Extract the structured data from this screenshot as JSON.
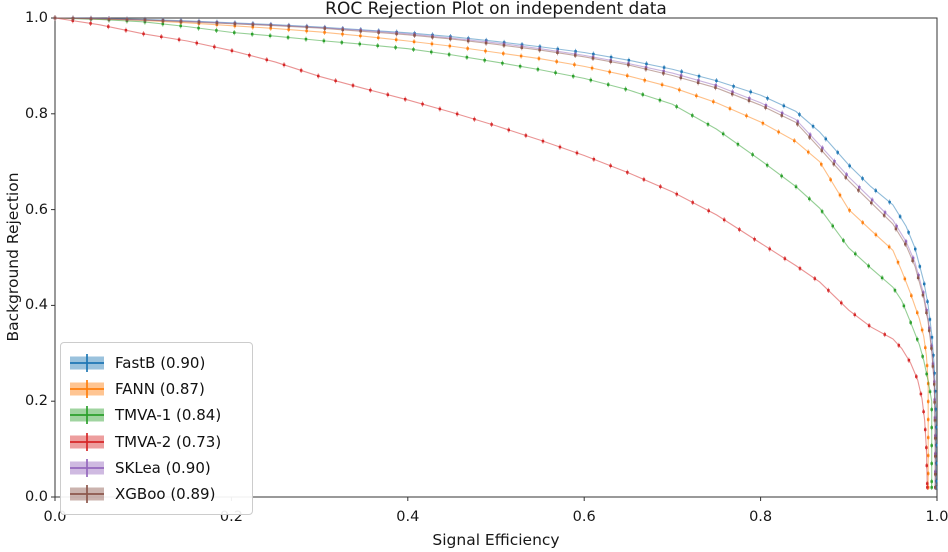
{
  "chart_data": {
    "type": "line",
    "title": "ROC Rejection Plot on independent data",
    "xlabel": "Signal Efficiency",
    "ylabel": "Background Rejection",
    "xlim": [
      0.0,
      1.0
    ],
    "ylim": [
      0.0,
      1.0
    ],
    "x_ticks": [
      "0.0",
      "0.2",
      "0.4",
      "0.6",
      "0.8",
      "1.0"
    ],
    "y_ticks": [
      "0.0",
      "0.2",
      "0.4",
      "0.6",
      "0.8",
      "1.0"
    ],
    "grid": false,
    "legend_position": "lower left",
    "frame_color": "#333333",
    "series": [
      {
        "name": "FastB",
        "auc": 0.9,
        "label": "FastB (0.90)",
        "color": "#1f77b4",
        "points": [
          [
            0,
            1
          ],
          [
            0.05,
            0.999
          ],
          [
            0.1,
            0.997
          ],
          [
            0.15,
            0.994
          ],
          [
            0.2,
            0.99
          ],
          [
            0.25,
            0.986
          ],
          [
            0.3,
            0.981
          ],
          [
            0.35,
            0.975
          ],
          [
            0.4,
            0.969
          ],
          [
            0.45,
            0.961
          ],
          [
            0.5,
            0.951
          ],
          [
            0.55,
            0.94
          ],
          [
            0.6,
            0.928
          ],
          [
            0.65,
            0.912
          ],
          [
            0.7,
            0.893
          ],
          [
            0.75,
            0.869
          ],
          [
            0.8,
            0.839
          ],
          [
            0.84,
            0.805
          ],
          [
            0.867,
            0.762
          ],
          [
            0.9,
            0.693
          ],
          [
            0.925,
            0.648
          ],
          [
            0.95,
            0.61
          ],
          [
            0.965,
            0.565
          ],
          [
            0.975,
            0.52
          ],
          [
            0.985,
            0.45
          ],
          [
            0.99,
            0.4
          ],
          [
            0.994,
            0.34
          ],
          [
            0.997,
            0.27
          ],
          [
            0.999,
            0.15
          ],
          [
            0.999,
            0.02
          ]
        ]
      },
      {
        "name": "FANN",
        "auc": 0.87,
        "label": "FANN (0.87)",
        "color": "#ff7f0e",
        "points": [
          [
            0,
            1
          ],
          [
            0.05,
            0.998
          ],
          [
            0.1,
            0.995
          ],
          [
            0.15,
            0.99
          ],
          [
            0.2,
            0.984
          ],
          [
            0.25,
            0.978
          ],
          [
            0.3,
            0.971
          ],
          [
            0.35,
            0.962
          ],
          [
            0.4,
            0.952
          ],
          [
            0.45,
            0.941
          ],
          [
            0.5,
            0.928
          ],
          [
            0.55,
            0.915
          ],
          [
            0.6,
            0.899
          ],
          [
            0.65,
            0.879
          ],
          [
            0.7,
            0.855
          ],
          [
            0.75,
            0.823
          ],
          [
            0.8,
            0.783
          ],
          [
            0.84,
            0.742
          ],
          [
            0.867,
            0.7
          ],
          [
            0.9,
            0.6
          ],
          [
            0.925,
            0.557
          ],
          [
            0.95,
            0.515
          ],
          [
            0.96,
            0.472
          ],
          [
            0.97,
            0.425
          ],
          [
            0.98,
            0.372
          ],
          [
            0.985,
            0.335
          ],
          [
            0.988,
            0.295
          ],
          [
            0.99,
            0.24
          ],
          [
            0.99,
            0.12
          ],
          [
            0.99,
            0.02
          ]
        ]
      },
      {
        "name": "TMVA-1",
        "auc": 0.84,
        "label": "TMVA-1 (0.84)",
        "color": "#2ca02c",
        "points": [
          [
            0,
            1
          ],
          [
            0.05,
            0.997
          ],
          [
            0.1,
            0.992
          ],
          [
            0.15,
            0.982
          ],
          [
            0.2,
            0.97
          ],
          [
            0.25,
            0.962
          ],
          [
            0.3,
            0.953
          ],
          [
            0.35,
            0.945
          ],
          [
            0.4,
            0.936
          ],
          [
            0.45,
            0.923
          ],
          [
            0.5,
            0.908
          ],
          [
            0.55,
            0.892
          ],
          [
            0.6,
            0.874
          ],
          [
            0.65,
            0.85
          ],
          [
            0.7,
            0.82
          ],
          [
            0.75,
            0.768
          ],
          [
            0.8,
            0.703
          ],
          [
            0.84,
            0.648
          ],
          [
            0.867,
            0.603
          ],
          [
            0.9,
            0.52
          ],
          [
            0.925,
            0.478
          ],
          [
            0.95,
            0.438
          ],
          [
            0.96,
            0.41
          ],
          [
            0.97,
            0.365
          ],
          [
            0.98,
            0.318
          ],
          [
            0.985,
            0.285
          ],
          [
            0.99,
            0.242
          ],
          [
            0.994,
            0.2
          ],
          [
            0.994,
            0.1
          ],
          [
            0.994,
            0.02
          ]
        ]
      },
      {
        "name": "TMVA-2",
        "auc": 0.73,
        "label": "TMVA-2 (0.73)",
        "color": "#d62728",
        "points": [
          [
            0,
            1
          ],
          [
            0.05,
            0.986
          ],
          [
            0.1,
            0.967
          ],
          [
            0.15,
            0.952
          ],
          [
            0.2,
            0.932
          ],
          [
            0.25,
            0.908
          ],
          [
            0.3,
            0.878
          ],
          [
            0.35,
            0.853
          ],
          [
            0.4,
            0.829
          ],
          [
            0.45,
            0.803
          ],
          [
            0.5,
            0.775
          ],
          [
            0.55,
            0.745
          ],
          [
            0.6,
            0.713
          ],
          [
            0.65,
            0.677
          ],
          [
            0.7,
            0.637
          ],
          [
            0.75,
            0.589
          ],
          [
            0.8,
            0.53
          ],
          [
            0.84,
            0.483
          ],
          [
            0.867,
            0.449
          ],
          [
            0.9,
            0.39
          ],
          [
            0.925,
            0.355
          ],
          [
            0.95,
            0.33
          ],
          [
            0.96,
            0.31
          ],
          [
            0.97,
            0.28
          ],
          [
            0.978,
            0.245
          ],
          [
            0.983,
            0.205
          ],
          [
            0.986,
            0.16
          ],
          [
            0.988,
            0.1
          ],
          [
            0.989,
            0.02
          ]
        ]
      },
      {
        "name": "SKLea",
        "auc": 0.9,
        "label": "SKLea (0.90)",
        "color": "#9467bd",
        "points": [
          [
            0,
            1
          ],
          [
            0.05,
            0.999
          ],
          [
            0.1,
            0.996
          ],
          [
            0.15,
            0.993
          ],
          [
            0.2,
            0.989
          ],
          [
            0.25,
            0.985
          ],
          [
            0.3,
            0.98
          ],
          [
            0.35,
            0.974
          ],
          [
            0.4,
            0.967
          ],
          [
            0.45,
            0.958
          ],
          [
            0.5,
            0.948
          ],
          [
            0.55,
            0.936
          ],
          [
            0.6,
            0.922
          ],
          [
            0.65,
            0.905
          ],
          [
            0.7,
            0.885
          ],
          [
            0.75,
            0.859
          ],
          [
            0.8,
            0.823
          ],
          [
            0.84,
            0.788
          ],
          [
            0.867,
            0.735
          ],
          [
            0.9,
            0.668
          ],
          [
            0.925,
            0.623
          ],
          [
            0.95,
            0.578
          ],
          [
            0.965,
            0.533
          ],
          [
            0.975,
            0.49
          ],
          [
            0.985,
            0.423
          ],
          [
            0.99,
            0.372
          ],
          [
            0.994,
            0.312
          ],
          [
            0.997,
            0.24
          ],
          [
            0.998,
            0.13
          ],
          [
            0.998,
            0.02
          ]
        ]
      },
      {
        "name": "XGBoo",
        "auc": 0.89,
        "label": "XGBoo (0.89)",
        "color": "#8c564b",
        "points": [
          [
            0,
            1
          ],
          [
            0.05,
            0.998
          ],
          [
            0.1,
            0.996
          ],
          [
            0.15,
            0.992
          ],
          [
            0.2,
            0.988
          ],
          [
            0.25,
            0.984
          ],
          [
            0.3,
            0.979
          ],
          [
            0.35,
            0.972
          ],
          [
            0.4,
            0.965
          ],
          [
            0.45,
            0.956
          ],
          [
            0.5,
            0.945
          ],
          [
            0.55,
            0.933
          ],
          [
            0.6,
            0.919
          ],
          [
            0.65,
            0.902
          ],
          [
            0.7,
            0.88
          ],
          [
            0.75,
            0.854
          ],
          [
            0.8,
            0.818
          ],
          [
            0.84,
            0.782
          ],
          [
            0.867,
            0.728
          ],
          [
            0.9,
            0.66
          ],
          [
            0.925,
            0.615
          ],
          [
            0.95,
            0.57
          ],
          [
            0.965,
            0.525
          ],
          [
            0.975,
            0.482
          ],
          [
            0.985,
            0.415
          ],
          [
            0.99,
            0.365
          ],
          [
            0.994,
            0.305
          ],
          [
            0.997,
            0.232
          ],
          [
            0.998,
            0.12
          ],
          [
            0.998,
            0.02
          ]
        ]
      }
    ]
  }
}
